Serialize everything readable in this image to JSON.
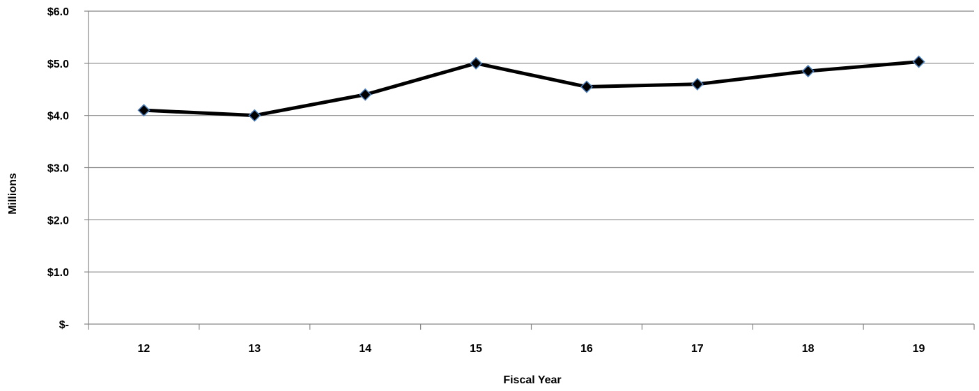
{
  "chart_data": {
    "type": "line",
    "title": "",
    "xlabel": "Fiscal Year",
    "ylabel": "Millions",
    "categories": [
      "12",
      "13",
      "14",
      "15",
      "16",
      "17",
      "18",
      "19"
    ],
    "series": [
      {
        "values": [
          4.1,
          4.0,
          4.4,
          5.0,
          4.55,
          4.6,
          4.85,
          5.03
        ]
      }
    ],
    "ylim": [
      0,
      6
    ],
    "yticks": [
      0,
      1,
      2,
      3,
      4,
      5,
      6
    ],
    "ytick_labels": [
      "$-",
      "$1.0",
      "$2.0",
      "$3.0",
      "$4.0",
      "$5.0",
      "$6.0"
    ],
    "grid": "horizontal",
    "legend": "none",
    "colors": {
      "line": "#000000",
      "marker_fill": "#000000",
      "marker_edge": "#4a7ebb",
      "grid": "#868686",
      "axis": "#868686"
    }
  }
}
